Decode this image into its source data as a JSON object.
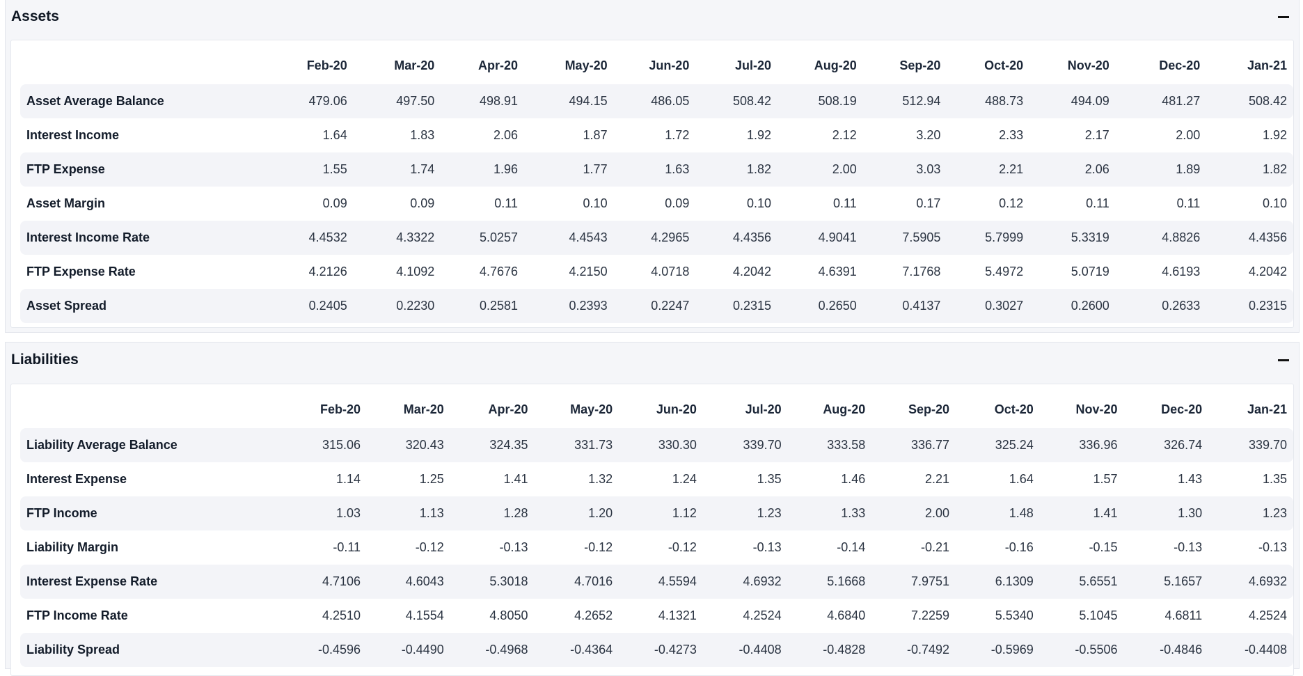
{
  "assets": {
    "title": "Assets",
    "columns": [
      "Feb-20",
      "Mar-20",
      "Apr-20",
      "May-20",
      "Jun-20",
      "Jul-20",
      "Aug-20",
      "Sep-20",
      "Oct-20",
      "Nov-20",
      "Dec-20",
      "Jan-21"
    ],
    "rows": [
      {
        "label": "Asset Average Balance",
        "values": [
          "479.06",
          "497.50",
          "498.91",
          "494.15",
          "486.05",
          "508.42",
          "508.19",
          "512.94",
          "488.73",
          "494.09",
          "481.27",
          "508.42"
        ]
      },
      {
        "label": "Interest Income",
        "values": [
          "1.64",
          "1.83",
          "2.06",
          "1.87",
          "1.72",
          "1.92",
          "2.12",
          "3.20",
          "2.33",
          "2.17",
          "2.00",
          "1.92"
        ]
      },
      {
        "label": "FTP Expense",
        "values": [
          "1.55",
          "1.74",
          "1.96",
          "1.77",
          "1.63",
          "1.82",
          "2.00",
          "3.03",
          "2.21",
          "2.06",
          "1.89",
          "1.82"
        ]
      },
      {
        "label": "Asset Margin",
        "values": [
          "0.09",
          "0.09",
          "0.11",
          "0.10",
          "0.09",
          "0.10",
          "0.11",
          "0.17",
          "0.12",
          "0.11",
          "0.11",
          "0.10"
        ]
      },
      {
        "label": "Interest Income Rate",
        "values": [
          "4.4532",
          "4.3322",
          "5.0257",
          "4.4543",
          "4.2965",
          "4.4356",
          "4.9041",
          "7.5905",
          "5.7999",
          "5.3319",
          "4.8826",
          "4.4356"
        ]
      },
      {
        "label": "FTP Expense Rate",
        "values": [
          "4.2126",
          "4.1092",
          "4.7676",
          "4.2150",
          "4.0718",
          "4.2042",
          "4.6391",
          "7.1768",
          "5.4972",
          "5.0719",
          "4.6193",
          "4.2042"
        ]
      },
      {
        "label": "Asset Spread",
        "values": [
          "0.2405",
          "0.2230",
          "0.2581",
          "0.2393",
          "0.2247",
          "0.2315",
          "0.2650",
          "0.4137",
          "0.3027",
          "0.2600",
          "0.2633",
          "0.2315"
        ]
      }
    ]
  },
  "liabilities": {
    "title": "Liabilities",
    "columns": [
      "Feb-20",
      "Mar-20",
      "Apr-20",
      "May-20",
      "Jun-20",
      "Jul-20",
      "Aug-20",
      "Sep-20",
      "Oct-20",
      "Nov-20",
      "Dec-20",
      "Jan-21"
    ],
    "rows": [
      {
        "label": "Liability Average Balance",
        "values": [
          "315.06",
          "320.43",
          "324.35",
          "331.73",
          "330.30",
          "339.70",
          "333.58",
          "336.77",
          "325.24",
          "336.96",
          "326.74",
          "339.70"
        ]
      },
      {
        "label": "Interest Expense",
        "values": [
          "1.14",
          "1.25",
          "1.41",
          "1.32",
          "1.24",
          "1.35",
          "1.46",
          "2.21",
          "1.64",
          "1.57",
          "1.43",
          "1.35"
        ]
      },
      {
        "label": "FTP Income",
        "values": [
          "1.03",
          "1.13",
          "1.28",
          "1.20",
          "1.12",
          "1.23",
          "1.33",
          "2.00",
          "1.48",
          "1.41",
          "1.30",
          "1.23"
        ]
      },
      {
        "label": "Liability Margin",
        "values": [
          "-0.11",
          "-0.12",
          "-0.13",
          "-0.12",
          "-0.12",
          "-0.13",
          "-0.14",
          "-0.21",
          "-0.16",
          "-0.15",
          "-0.13",
          "-0.13"
        ]
      },
      {
        "label": "Interest Expense Rate",
        "values": [
          "4.7106",
          "4.6043",
          "5.3018",
          "4.7016",
          "4.5594",
          "4.6932",
          "5.1668",
          "7.9751",
          "6.1309",
          "5.6551",
          "5.1657",
          "4.6932"
        ]
      },
      {
        "label": "FTP Income Rate",
        "values": [
          "4.2510",
          "4.1554",
          "4.8050",
          "4.2652",
          "4.1321",
          "4.2524",
          "4.6840",
          "7.2259",
          "5.5340",
          "5.1045",
          "4.6811",
          "4.2524"
        ]
      },
      {
        "label": "Liability Spread",
        "values": [
          "-0.4596",
          "-0.4490",
          "-0.4968",
          "-0.4364",
          "-0.4273",
          "-0.4408",
          "-0.4828",
          "-0.7492",
          "-0.5969",
          "-0.5506",
          "-0.4846",
          "-0.4408"
        ]
      }
    ]
  }
}
